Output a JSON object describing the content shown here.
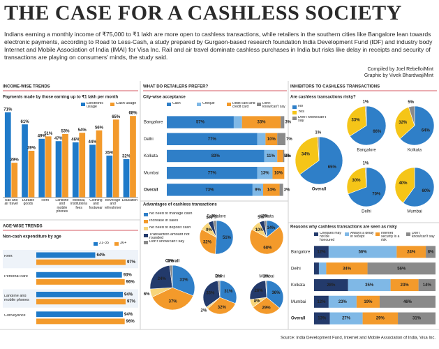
{
  "header": {
    "title": "THE CASE FOR A CASHLESS SOCIETY",
    "intro": "Indians earning a monthly income of ₹75,000 to ₹1 lakh are more open to cashless transactions, while retailers in the southern cities like Bangalore lean towards electronic payments, according to Road to Less-Cash, a study prepared by Gurgaon-based research foundation India Development Fund (IDF) and industry body Internet and Mobile Association of India (IMAI) for Visa Inc. Rail and air travel dominate cashless purchases in India but risks like delay in receipts and security of transactions are playing on consumers' minds, the study said.",
    "credits": [
      "Compiled by Joel Rebello/Mint",
      "Graphic by Vivek Bhardwaj/Mint"
    ]
  },
  "source": "Source: India Development Fund, Internet and Mobile Association of India, Visa Inc.",
  "chart_data": [
    {
      "type": "bar",
      "section": "INCOME-WISE TRENDS",
      "title": "Payments made by those earning up to ₹1 lakh per month",
      "categories": [
        "Rail and air travel",
        "Durable goods",
        "Rent",
        "Landline and mobile phones",
        "Medical, institutional fees",
        "Clothing and footwear",
        "Beverage and refreshments",
        "Education"
      ],
      "series": [
        {
          "name": "Electronic usage",
          "color": "#1f7ac9",
          "values": [
            71,
            61,
            49,
            47,
            46,
            44,
            35,
            32
          ],
          "value_labels": [
            "71%",
            "61%",
            "49%",
            "47%",
            "46%",
            "44%",
            "35%",
            "32%"
          ]
        },
        {
          "name": "Cash usage",
          "color": "#f39a2b",
          "values": [
            29,
            39,
            51,
            53,
            54,
            56,
            65,
            68
          ],
          "value_labels": [
            "29%",
            "39%",
            "51%",
            "53%",
            "54%",
            "56%",
            "65%",
            "68%"
          ]
        }
      ]
    },
    {
      "type": "hbar",
      "section": "AGE-WISE TRENDS",
      "title": "Non-cash expenditure by age",
      "categories": [
        "Rent",
        "Personal care",
        "Landline and mobile phones",
        "Conveyance"
      ],
      "series": [
        {
          "name": "21-35",
          "color": "#1f7ac9",
          "values": [
            64,
            93,
            94,
            94
          ],
          "value_labels": [
            "64%",
            "93%",
            "94%",
            "94%"
          ]
        },
        {
          "name": "36+",
          "color": "#f39a2b",
          "values": [
            97,
            96,
            97,
            96
          ],
          "value_labels": [
            "97%",
            "96%",
            "97%",
            "96%"
          ]
        }
      ]
    },
    {
      "type": "stacked-hbar",
      "section": "WHAT DO RETAILERS PREFER?",
      "title": "City-wise acceptance",
      "categories": [
        "Bangalore",
        "Delhi",
        "Kolkata",
        "Mumbai",
        "Overall"
      ],
      "series": [
        {
          "name": "Cash",
          "color": "#2f7fc8",
          "values": [
            57,
            77,
            83,
            77,
            73
          ],
          "value_labels": [
            "57%",
            "77%",
            "83%",
            "77%",
            "73%"
          ]
        },
        {
          "name": "Cheque",
          "color": "#7fb8e6",
          "values": [
            7,
            7,
            11,
            13,
            9
          ],
          "value_labels": [
            "7%",
            "7%",
            "11%",
            "13%",
            "9%"
          ]
        },
        {
          "name": "Debit card and credit card",
          "color": "#f39a2b",
          "values": [
            33,
            10,
            5,
            10,
            14
          ],
          "value_labels": [
            "33%",
            "10%",
            "5%",
            "10%",
            "14%"
          ]
        },
        {
          "name": "Don't know/can't say",
          "color": "#8a8a8a",
          "values": [
            3,
            7,
            1,
            null,
            3
          ],
          "value_labels": [
            "3%",
            "7%",
            "1%",
            null,
            "3%"
          ]
        }
      ]
    },
    {
      "type": "pie",
      "title": "Advantages of cashless transactions",
      "labels": [
        "No need to manage cash",
        "Increase in sales",
        "No need to deposit cash",
        "Transaction amount not rounded",
        "Don't know/can't say"
      ],
      "colors": [
        "#2f7fc8",
        "#f39a2b",
        "#f7d57a",
        "#233a6b",
        "#8a8a8a"
      ],
      "pies": [
        {
          "name": "Bangalore",
          "values": [
            51,
            32,
            9,
            5,
            3
          ],
          "value_labels": [
            "51%",
            "32%",
            "9%",
            "5%",
            "3%"
          ]
        },
        {
          "name": "Kolkata",
          "values": [
            14,
            68,
            10,
            5,
            2
          ],
          "value_labels": [
            "14%",
            "68%",
            "10%",
            "5%",
            "2%"
          ]
        },
        {
          "name": "Overall",
          "values": [
            31,
            37,
            6,
            24,
            2
          ],
          "value_labels": [
            "31%",
            "37%",
            "6%",
            "24%",
            "2%"
          ]
        },
        {
          "name": "Delhi",
          "values": [
            31,
            32,
            2,
            33,
            2
          ],
          "value_labels": [
            "31%",
            "32%",
            "2%",
            "33%",
            "2%"
          ]
        },
        {
          "name": "Mumbai",
          "values": [
            36,
            29,
            8,
            26,
            1
          ],
          "value_labels": [
            "36%",
            "29%",
            "8%",
            "26%",
            "1%"
          ]
        }
      ]
    },
    {
      "type": "pie",
      "section": "INHIBITORS TO CASHLESS TRANSACTIONS",
      "title": "Are cashless transactions risky?",
      "labels": [
        "No",
        "Yes",
        "Don't know/can't say"
      ],
      "colors": [
        "#2f7fc8",
        "#f5c518",
        "#8a8a8a"
      ],
      "pies": [
        {
          "name": "Overall",
          "values": [
            65,
            34,
            1
          ],
          "value_labels": [
            "65%",
            "34%",
            "1%"
          ]
        },
        {
          "name": "Bangalore",
          "values": [
            66,
            33,
            1
          ],
          "value_labels": [
            "66%",
            "33%",
            "1%"
          ]
        },
        {
          "name": "Kolkata",
          "values": [
            64,
            32,
            5
          ],
          "value_labels": [
            "64%",
            "32%",
            "5%"
          ]
        },
        {
          "name": "Delhi",
          "values": [
            70,
            30,
            1
          ],
          "value_labels": [
            "70%",
            "30%",
            "1%"
          ]
        },
        {
          "name": "Mumbai",
          "values": [
            60,
            40,
            null
          ],
          "value_labels": [
            "60%",
            "40%",
            null
          ]
        }
      ]
    },
    {
      "type": "stacked-hbar",
      "title": "Reasons why cashless transactions are seen as risky",
      "categories": [
        "Bangalore",
        "Delhi",
        "Kolkata",
        "Mumbai",
        "Overall"
      ],
      "series": [
        {
          "name": "Cheques may not be honoured",
          "color": "#233a6b",
          "values": [
            12,
            4,
            28,
            12,
            13
          ],
          "value_labels": [
            "12%",
            "4%",
            "28%",
            "12%",
            "13%"
          ]
        },
        {
          "name": "Always a delay in receipt",
          "color": "#7fb8e6",
          "values": [
            56,
            6,
            35,
            23,
            27
          ],
          "value_labels": [
            "56%",
            "6%",
            "35%",
            "23%",
            "27%"
          ]
        },
        {
          "name": "Internet security is a risk",
          "color": "#f39a2b",
          "values": [
            24,
            34,
            23,
            19,
            29
          ],
          "value_labels": [
            "24%",
            "34%",
            "23%",
            "19%",
            "29%"
          ]
        },
        {
          "name": "Don't know/can't say",
          "color": "#8a8a8a",
          "values": [
            8,
            56,
            14,
            46,
            31
          ],
          "value_labels": [
            "8%",
            "56%",
            "14%",
            "46%",
            "31%"
          ]
        }
      ]
    }
  ]
}
